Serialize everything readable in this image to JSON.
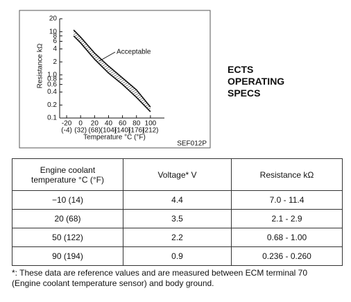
{
  "chart_data": {
    "type": "line",
    "x_label": "Temperature °C (°F)",
    "y_label": "Resistance kΩ",
    "annotation": "Acceptable",
    "figure_code": "SEF012P",
    "xlim": [
      -30,
      120
    ],
    "xticks": [
      -20,
      0,
      20,
      40,
      60,
      80,
      100
    ],
    "xtick_labels_f": [
      "(-4)",
      "(32)",
      "(68)",
      "(104)",
      "(140)",
      "(176)",
      "(212)"
    ],
    "ylim": [
      0.1,
      20
    ],
    "ylog": true,
    "yticks": [
      0.1,
      0.2,
      0.4,
      0.6,
      0.8,
      {
        "value": 1,
        "label": "1.0"
      },
      2,
      4,
      6,
      8,
      10,
      20
    ],
    "x": [
      -10,
      0,
      20,
      40,
      60,
      80,
      100
    ],
    "series": [
      {
        "color": "#111111",
        "values": [
          11,
          7.5,
          3.2,
          1.6,
          0.85,
          0.45,
          0.18
        ]
      },
      {
        "color": "#111111",
        "values": [
          8,
          5.5,
          2.3,
          1.1,
          0.6,
          0.3,
          0.14
        ]
      }
    ]
  },
  "heading": "ECTS\nOPERATING\nSPECS",
  "table": {
    "header": [
      "Engine coolant\ntemperature   °C (°F)",
      "Voltage*   V",
      "Resistance   kΩ"
    ],
    "rows": [
      [
        "−10 (14)",
        "4.4",
        "7.0 - 11.4"
      ],
      [
        "20 (68)",
        "3.5",
        "2.1 - 2.9"
      ],
      [
        "50 (122)",
        "2.2",
        "0.68 - 1.00"
      ],
      [
        "90 (194)",
        "0.9",
        "0.236 - 0.260"
      ]
    ]
  },
  "footnote": [
    "*: These data are reference values and are measured between ECM terminal 70",
    "(Engine coolant temperature sensor) and body ground."
  ]
}
